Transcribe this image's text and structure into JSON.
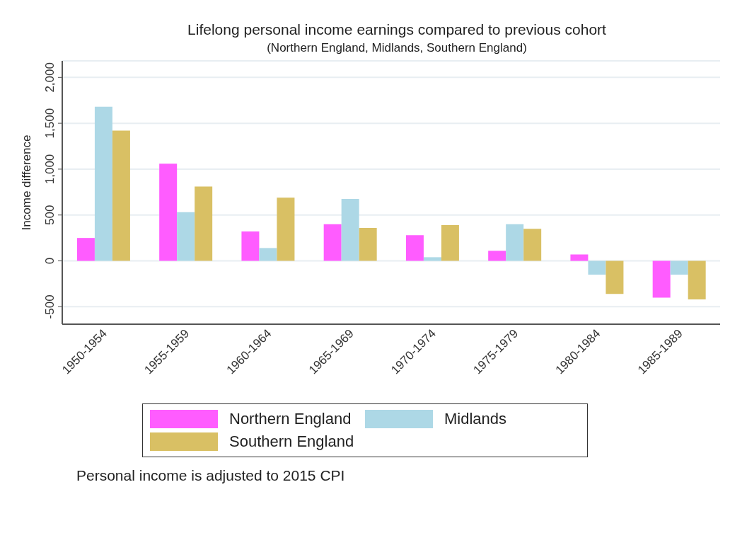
{
  "chart_data": {
    "type": "bar",
    "title": "Lifelong personal income earnings compared to previous cohort",
    "subtitle": "(Northern England, Midlands, Southern England)",
    "ylabel": "Income difference",
    "categories": [
      "1950-1954",
      "1955-1959",
      "1960-1964",
      "1965-1969",
      "1970-1974",
      "1975-1979",
      "1980-1984",
      "1985-1989"
    ],
    "series": [
      {
        "name": "Northern England",
        "color": "#ff5cff",
        "values": [
          250,
          1060,
          320,
          400,
          280,
          110,
          70,
          -400
        ]
      },
      {
        "name": "Midlands",
        "color": "#add8e6",
        "values": [
          1680,
          530,
          140,
          675,
          40,
          400,
          -150,
          -150
        ]
      },
      {
        "name": "Southern England",
        "color": "#d9c064",
        "values": [
          1420,
          810,
          690,
          360,
          390,
          350,
          -360,
          -420
        ]
      }
    ],
    "ylim": [
      -690,
      2180
    ],
    "yticks": [
      {
        "value": -500,
        "label": "-500"
      },
      {
        "value": 0,
        "label": "0"
      },
      {
        "value": 500,
        "label": "500"
      },
      {
        "value": 1000,
        "label": "1,000"
      },
      {
        "value": 1500,
        "label": "1,500"
      },
      {
        "value": 2000,
        "label": "2,000"
      }
    ],
    "grid": "y",
    "legend": "bottom",
    "annotations": [
      "Personal income is adjusted to 2015 CPI"
    ]
  }
}
